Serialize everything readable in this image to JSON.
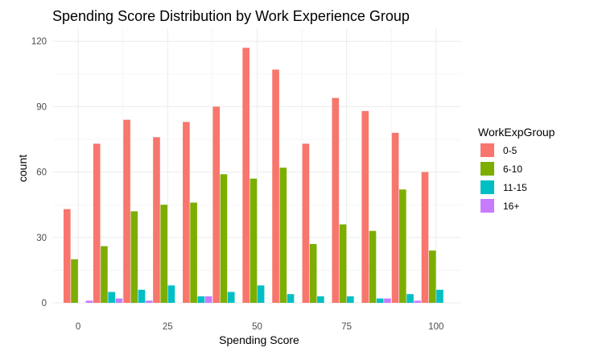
{
  "chart_data": {
    "type": "bar",
    "title": "Spending Score Distribution by Work Experience Group",
    "xlabel": "Spending Score",
    "ylabel": "count",
    "xlim": [
      -7,
      107
    ],
    "ylim": [
      0,
      126
    ],
    "x_ticks": [
      0,
      25,
      50,
      75,
      100
    ],
    "y_ticks": [
      0,
      30,
      60,
      90,
      120
    ],
    "grid": true,
    "legend": {
      "title": "WorkExpGroup",
      "position": "right"
    },
    "bin_centers": [
      0,
      8.3,
      16.7,
      25,
      33.3,
      41.7,
      50,
      58.3,
      66.7,
      75,
      83.3,
      91.7,
      100
    ],
    "series": [
      {
        "name": "0-5",
        "color": "#F8766D",
        "values": [
          43,
          73,
          84,
          76,
          83,
          90,
          117,
          107,
          73,
          94,
          88,
          78,
          60
        ]
      },
      {
        "name": "6-10",
        "color": "#7CAE00",
        "values": [
          20,
          26,
          42,
          45,
          46,
          59,
          57,
          62,
          27,
          36,
          33,
          52,
          24
        ]
      },
      {
        "name": "11-15",
        "color": "#00BFC4",
        "values": [
          0,
          5,
          6,
          8,
          3,
          5,
          8,
          4,
          3,
          3,
          2,
          4,
          6
        ]
      },
      {
        "name": "16+",
        "color": "#C77CFF",
        "values": [
          1,
          2,
          1,
          0,
          3,
          0,
          0,
          0,
          0,
          0,
          2,
          1,
          0
        ]
      }
    ]
  }
}
